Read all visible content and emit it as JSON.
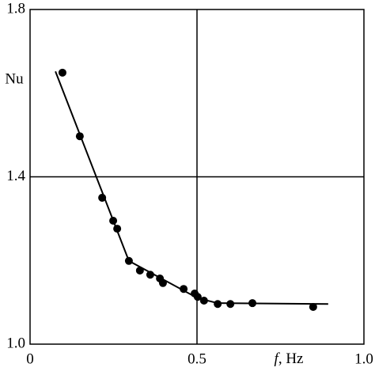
{
  "chart_data": {
    "type": "scatter",
    "x_label": "f, Hz",
    "y_label": "Nu",
    "xlim": [
      0,
      1.0
    ],
    "xticks": [
      0,
      {
        "value": 0.5,
        "label": "0.5"
      },
      {
        "value": 1.0,
        "label": "1.0"
      }
    ],
    "ylim": [
      1.0,
      1.8
    ],
    "yticks": [
      {
        "value": 1.0,
        "label": "1.0"
      },
      {
        "value": 1.4,
        "label": "1.4"
      },
      {
        "value": 1.8,
        "label": "1.8"
      }
    ],
    "grid": true,
    "color": "#000000",
    "series": [
      {
        "mode": "markers",
        "color": "#000000",
        "x": [
          0.097,
          0.149,
          0.216,
          0.249,
          0.261,
          0.296,
          0.329,
          0.36,
          0.389,
          0.398,
          0.46,
          0.493,
          0.502,
          0.521,
          0.562,
          0.6,
          0.666,
          0.848
        ],
        "values": [
          1.649,
          1.497,
          1.35,
          1.295,
          1.276,
          1.199,
          1.176,
          1.166,
          1.157,
          1.146,
          1.132,
          1.121,
          1.113,
          1.104,
          1.096,
          1.096,
          1.098,
          1.089
        ]
      },
      {
        "mode": "line",
        "color": "#000000",
        "x": [
          0.076,
          0.296,
          0.502,
          0.562,
          0.893
        ],
        "values": [
          1.652,
          1.199,
          1.11,
          1.098,
          1.096
        ]
      }
    ]
  }
}
